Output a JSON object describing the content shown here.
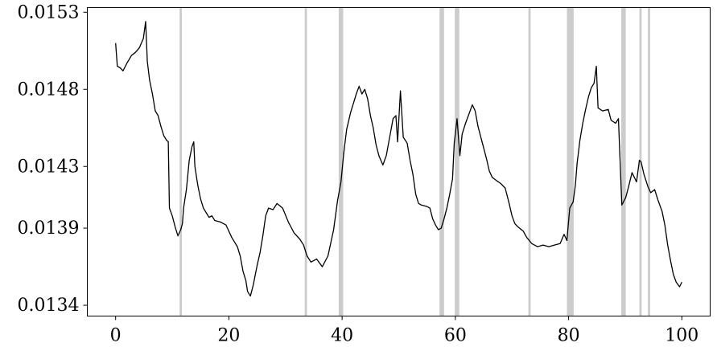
{
  "chart_data": {
    "type": "line",
    "title": "",
    "xlabel": "",
    "ylabel": "",
    "xlim": [
      -5,
      105
    ],
    "ylim": [
      0.01333,
      0.01533
    ],
    "xticks": [
      0,
      20,
      40,
      60,
      80,
      100
    ],
    "xtick_labels": [
      "0",
      "20",
      "40",
      "60",
      "80",
      "100"
    ],
    "yticks": [
      0.0134,
      0.0139,
      0.0143,
      0.0148,
      0.0153
    ],
    "ytick_labels": [
      "0.0134",
      "0.0139",
      "0.0143",
      "0.0148",
      "0.0153"
    ],
    "grid": false,
    "colors": {
      "line": "#000000",
      "highlight": "#cccccc",
      "axes": "#000000"
    },
    "highlight_bands": [
      [
        11.3,
        11.7
      ],
      [
        33.4,
        33.8
      ],
      [
        39.4,
        40.2
      ],
      [
        57.2,
        58.0
      ],
      [
        59.9,
        60.7
      ],
      [
        72.9,
        73.3
      ],
      [
        79.7,
        80.9
      ],
      [
        89.3,
        90.1
      ],
      [
        92.5,
        92.9
      ],
      [
        94.0,
        94.4
      ]
    ],
    "series": [
      {
        "values": [
          [
            0,
            0.0151
          ],
          [
            0.3,
            0.01495
          ],
          [
            0.8,
            0.01494
          ],
          [
            1.3,
            0.01492
          ],
          [
            2,
            0.01497
          ],
          [
            2.8,
            0.01502
          ],
          [
            3.5,
            0.01504
          ],
          [
            4.2,
            0.01507
          ],
          [
            4.9,
            0.01513
          ],
          [
            5.3,
            0.01524
          ],
          [
            5.6,
            0.01498
          ],
          [
            6,
            0.01486
          ],
          [
            6.5,
            0.01477
          ],
          [
            7,
            0.01466
          ],
          [
            7.5,
            0.01463
          ],
          [
            8,
            0.01456
          ],
          [
            8.5,
            0.0145
          ],
          [
            9,
            0.01447
          ],
          [
            9.3,
            0.01446
          ],
          [
            9.5,
            0.01403
          ],
          [
            10,
            0.01398
          ],
          [
            10.5,
            0.01391
          ],
          [
            11,
            0.01385
          ],
          [
            11.5,
            0.01389
          ],
          [
            11.8,
            0.01393
          ],
          [
            12,
            0.01403
          ],
          [
            12.5,
            0.01415
          ],
          [
            13,
            0.01434
          ],
          [
            13.5,
            0.01443
          ],
          [
            13.8,
            0.01446
          ],
          [
            14,
            0.0143
          ],
          [
            14.5,
            0.01418
          ],
          [
            15,
            0.01409
          ],
          [
            15.5,
            0.01403
          ],
          [
            16,
            0.014
          ],
          [
            16.5,
            0.01397
          ],
          [
            17,
            0.01398
          ],
          [
            17.5,
            0.01395
          ],
          [
            18.5,
            0.01394
          ],
          [
            19.5,
            0.01392
          ],
          [
            20.5,
            0.01384
          ],
          [
            21.5,
            0.01378
          ],
          [
            22,
            0.01372
          ],
          [
            22.5,
            0.01362
          ],
          [
            23,
            0.01356
          ],
          [
            23.3,
            0.01349
          ],
          [
            23.8,
            0.01346
          ],
          [
            24.3,
            0.01353
          ],
          [
            25,
            0.01366
          ],
          [
            25.5,
            0.01374
          ],
          [
            26,
            0.01385
          ],
          [
            26.5,
            0.01398
          ],
          [
            27,
            0.01403
          ],
          [
            27.8,
            0.01402
          ],
          [
            28.5,
            0.01406
          ],
          [
            29.5,
            0.01403
          ],
          [
            30.5,
            0.01394
          ],
          [
            31.5,
            0.01387
          ],
          [
            32.5,
            0.01383
          ],
          [
            33.2,
            0.01379
          ],
          [
            33.8,
            0.01372
          ],
          [
            34.5,
            0.01368
          ],
          [
            35.5,
            0.0137
          ],
          [
            36.5,
            0.01365
          ],
          [
            37.5,
            0.01372
          ],
          [
            38.5,
            0.01389
          ],
          [
            39.2,
            0.01408
          ],
          [
            39.8,
            0.0142
          ],
          [
            40.3,
            0.01439
          ],
          [
            40.8,
            0.01454
          ],
          [
            41.5,
            0.01465
          ],
          [
            42.5,
            0.01477
          ],
          [
            43,
            0.01482
          ],
          [
            43.5,
            0.01477
          ],
          [
            44,
            0.0148
          ],
          [
            44.5,
            0.01474
          ],
          [
            45,
            0.01463
          ],
          [
            45.5,
            0.01455
          ],
          [
            46,
            0.01444
          ],
          [
            46.5,
            0.01437
          ],
          [
            47.2,
            0.01431
          ],
          [
            47.8,
            0.01437
          ],
          [
            48.5,
            0.01451
          ],
          [
            49,
            0.01461
          ],
          [
            49.5,
            0.01463
          ],
          [
            49.8,
            0.01446
          ],
          [
            50.3,
            0.01479
          ],
          [
            50.8,
            0.01449
          ],
          [
            51.5,
            0.01445
          ],
          [
            52,
            0.01434
          ],
          [
            52.5,
            0.01425
          ],
          [
            53,
            0.01412
          ],
          [
            53.5,
            0.01406
          ],
          [
            54,
            0.01405
          ],
          [
            55,
            0.01404
          ],
          [
            55.5,
            0.01403
          ],
          [
            56,
            0.01396
          ],
          [
            56.5,
            0.01392
          ],
          [
            57,
            0.01389
          ],
          [
            57.5,
            0.0139
          ],
          [
            58,
            0.01396
          ],
          [
            58.5,
            0.01403
          ],
          [
            59,
            0.01412
          ],
          [
            59.5,
            0.01422
          ],
          [
            59.8,
            0.01445
          ],
          [
            60.3,
            0.01461
          ],
          [
            60.8,
            0.01437
          ],
          [
            61.2,
            0.01451
          ],
          [
            61.8,
            0.01458
          ],
          [
            62.5,
            0.01465
          ],
          [
            63,
            0.0147
          ],
          [
            63.5,
            0.01466
          ],
          [
            64,
            0.01456
          ],
          [
            64.5,
            0.01449
          ],
          [
            65,
            0.01442
          ],
          [
            65.5,
            0.01435
          ],
          [
            66,
            0.01427
          ],
          [
            66.5,
            0.01423
          ],
          [
            67.2,
            0.01421
          ],
          [
            68,
            0.01419
          ],
          [
            68.8,
            0.01416
          ],
          [
            69.5,
            0.01406
          ],
          [
            70,
            0.01398
          ],
          [
            70.5,
            0.01393
          ],
          [
            71,
            0.01391
          ],
          [
            72,
            0.01388
          ],
          [
            72.6,
            0.01384
          ],
          [
            73.5,
            0.0138
          ],
          [
            74.5,
            0.01378
          ],
          [
            75.5,
            0.01379
          ],
          [
            76.5,
            0.01378
          ],
          [
            77.5,
            0.01379
          ],
          [
            78.5,
            0.0138
          ],
          [
            79.2,
            0.01386
          ],
          [
            79.7,
            0.01382
          ],
          [
            80.2,
            0.01403
          ],
          [
            80.8,
            0.01407
          ],
          [
            81.2,
            0.01418
          ],
          [
            81.5,
            0.01432
          ],
          [
            82,
            0.01447
          ],
          [
            82.5,
            0.01458
          ],
          [
            83,
            0.01467
          ],
          [
            83.5,
            0.01475
          ],
          [
            84,
            0.01481
          ],
          [
            84.5,
            0.01484
          ],
          [
            84.9,
            0.01495
          ],
          [
            85.2,
            0.01468
          ],
          [
            86,
            0.01466
          ],
          [
            87,
            0.01467
          ],
          [
            87.5,
            0.0146
          ],
          [
            88.3,
            0.01458
          ],
          [
            88.8,
            0.01461
          ],
          [
            89.4,
            0.01405
          ],
          [
            90.1,
            0.0141
          ],
          [
            90.6,
            0.01417
          ],
          [
            91.2,
            0.01426
          ],
          [
            92,
            0.0142
          ],
          [
            92.5,
            0.01434
          ],
          [
            92.8,
            0.01433
          ],
          [
            93.3,
            0.01425
          ],
          [
            94,
            0.01417
          ],
          [
            94.5,
            0.01413
          ],
          [
            95.2,
            0.01415
          ],
          [
            95.8,
            0.01408
          ],
          [
            96.5,
            0.01401
          ],
          [
            97,
            0.01392
          ],
          [
            97.5,
            0.01379
          ],
          [
            98,
            0.01369
          ],
          [
            98.5,
            0.0136
          ],
          [
            99,
            0.01355
          ],
          [
            99.6,
            0.01352
          ],
          [
            100,
            0.01355
          ]
        ]
      }
    ]
  }
}
